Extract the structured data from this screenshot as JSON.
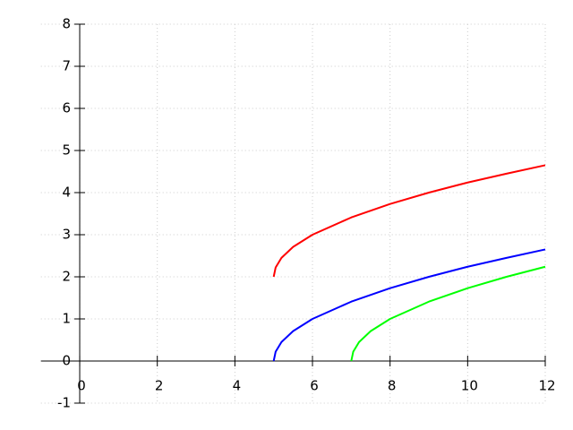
{
  "chart_data": {
    "type": "line",
    "series": [
      {
        "color": "#ff0000",
        "x": [
          5,
          5.05,
          5.2,
          5.5,
          6,
          7,
          8,
          9,
          10,
          11,
          12
        ],
        "values": [
          2,
          2.22,
          2.45,
          2.71,
          3,
          3.41,
          3.73,
          4,
          4.24,
          4.45,
          4.65
        ]
      },
      {
        "color": "#0000ff",
        "x": [
          5,
          5.05,
          5.2,
          5.5,
          6,
          7,
          8,
          9,
          10,
          11,
          12
        ],
        "values": [
          0,
          0.22,
          0.45,
          0.71,
          1,
          1.41,
          1.73,
          2,
          2.24,
          2.45,
          2.65
        ]
      },
      {
        "color": "#00ff00",
        "x": [
          7,
          7.05,
          7.2,
          7.5,
          8,
          9,
          10,
          11,
          12
        ],
        "values": [
          0,
          0.22,
          0.45,
          0.71,
          1,
          1.41,
          1.73,
          2,
          2.24
        ]
      }
    ],
    "xlim": [
      -1,
      12
    ],
    "ylim": [
      -1,
      8
    ],
    "xticks": [
      0,
      2,
      4,
      6,
      8,
      10,
      12
    ],
    "yticks": [
      -1,
      0,
      1,
      2,
      3,
      4,
      5,
      6,
      7,
      8
    ],
    "grid": true
  }
}
